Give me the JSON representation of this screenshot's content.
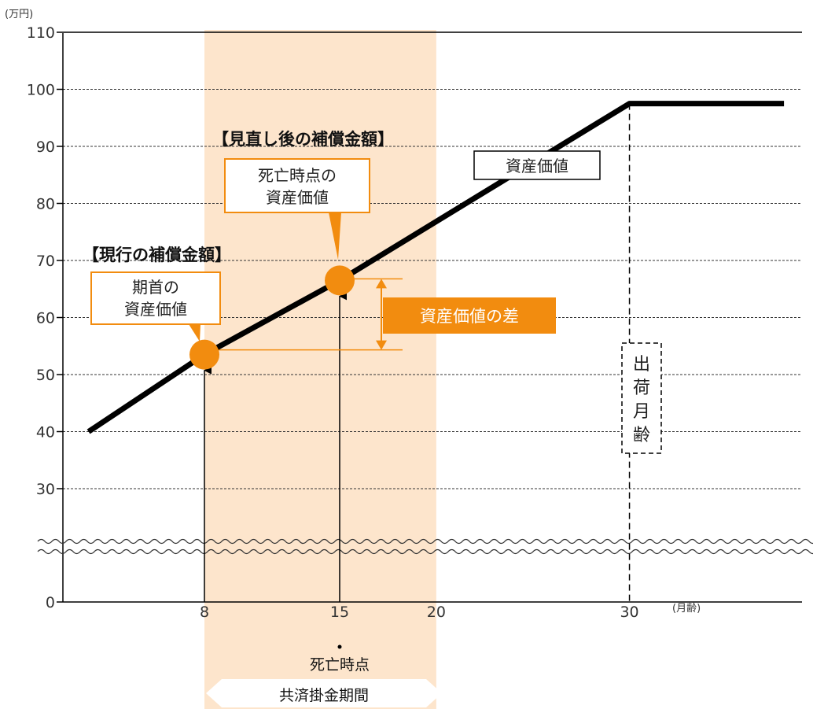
{
  "chart_data": {
    "type": "line",
    "title": "",
    "y_unit_label": "(万円)",
    "x_unit_label": "(月齢)",
    "ylim": [
      0,
      110
    ],
    "yticks": [
      "0",
      "30",
      "40",
      "50",
      "60",
      "70",
      "80",
      "90",
      "100",
      "110"
    ],
    "y_axis_break": true,
    "xticks": [
      "8",
      "15",
      "20",
      "30"
    ],
    "grid": true,
    "series": [
      {
        "name": "資産価値",
        "x": [
          2,
          8,
          15,
          30,
          38
        ],
        "y": [
          40,
          53.5,
          66.5,
          97.5,
          97.5
        ]
      }
    ],
    "highlight_points": [
      {
        "x": 8,
        "y": 53.5
      },
      {
        "x": 15,
        "y": 66.5
      }
    ],
    "shaded_range": [
      8,
      20
    ],
    "annotations": {
      "current_heading": "【現行の補償金額】",
      "current_box": [
        "期首の",
        "資産価値"
      ],
      "revised_heading": "【見直し後の補償金額】",
      "revised_box": [
        "死亡時点の",
        "資産価値"
      ],
      "series_box": "資産価値",
      "difference_label": "資産価値の差",
      "shipping_age": [
        "出",
        "荷",
        "月",
        "齢"
      ],
      "death_point": "死亡時点",
      "period_label": "共済掛金期間"
    },
    "colors": {
      "accent": "#f28c0f",
      "shade": "#fde5cc",
      "line": "#000000"
    }
  }
}
